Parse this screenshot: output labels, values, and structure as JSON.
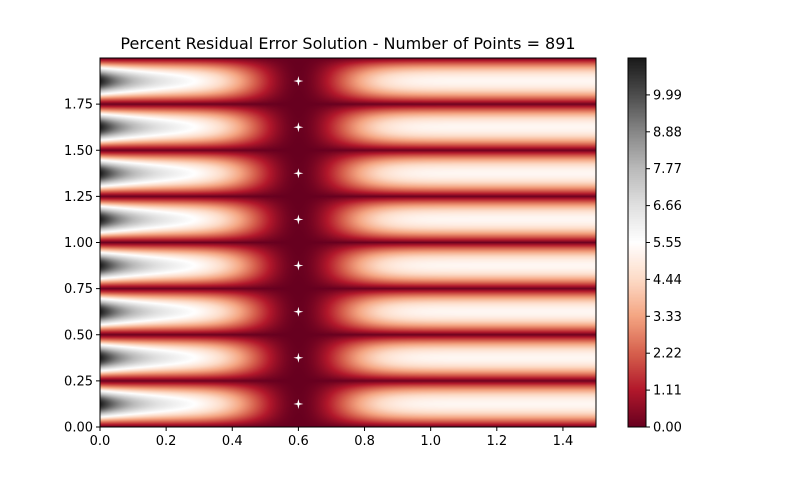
{
  "chart_data": {
    "type": "heatmap",
    "title": "Percent Residual Error Solution - Number of Points = 891",
    "xlabel": "",
    "ylabel": "",
    "xlim": [
      0.0,
      1.5
    ],
    "ylim": [
      0.0,
      2.0
    ],
    "x_ticks": [
      0.0,
      0.2,
      0.4,
      0.6,
      0.8,
      1.0,
      1.2,
      1.4
    ],
    "x_tick_labels": [
      "0.0",
      "0.2",
      "0.4",
      "0.6",
      "0.8",
      "1.0",
      "1.2",
      "1.4"
    ],
    "y_ticks": [
      0.0,
      0.25,
      0.5,
      0.75,
      1.0,
      1.25,
      1.5,
      1.75
    ],
    "y_tick_labels": [
      "0.00",
      "0.25",
      "0.50",
      "0.75",
      "1.00",
      "1.25",
      "1.50",
      "1.75"
    ],
    "colormap": "RdGy",
    "colormap_stops": [
      "#67001f",
      "#b2182b",
      "#d6604d",
      "#f4a582",
      "#fddbc7",
      "#ffffff",
      "#e0e0e0",
      "#bababa",
      "#878787",
      "#4d4d4d",
      "#1a1a1a"
    ],
    "colorbar": {
      "vmin": 0.0,
      "vmax": 11.1,
      "ticks": [
        0.0,
        1.11,
        2.22,
        3.33,
        4.44,
        5.55,
        6.66,
        7.77,
        8.88,
        9.99
      ],
      "tick_labels": [
        "0.00",
        "1.11",
        "2.22",
        "3.33",
        "4.44",
        "5.55",
        "6.66",
        "7.77",
        "8.88",
        "9.99"
      ]
    },
    "field": {
      "description_note": "",
      "zero_error_x": 0.6,
      "zero_error_y_bands": [
        0.0,
        0.25,
        0.5,
        0.75,
        1.0,
        1.25,
        1.5,
        1.75,
        2.0
      ],
      "band_max_error": 5.3,
      "left_edge_max_error": 11.1
    },
    "markers": {
      "marker": "white-star",
      "color": "#ffffff",
      "points": [
        {
          "x": 0.6,
          "y": 0.125
        },
        {
          "x": 0.6,
          "y": 0.375
        },
        {
          "x": 0.6,
          "y": 0.625
        },
        {
          "x": 0.6,
          "y": 0.875
        },
        {
          "x": 0.6,
          "y": 1.125
        },
        {
          "x": 0.6,
          "y": 1.375
        },
        {
          "x": 0.6,
          "y": 1.625
        },
        {
          "x": 0.6,
          "y": 1.875
        }
      ]
    }
  }
}
